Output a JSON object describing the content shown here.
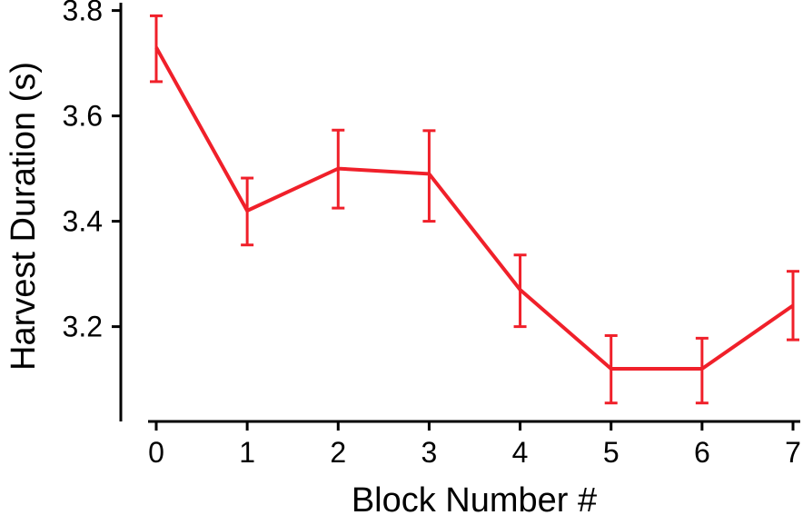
{
  "chart_data": {
    "type": "line",
    "title": "",
    "xlabel": "Block Number #",
    "ylabel": "Harvest Duration (s)",
    "x": [
      0,
      1,
      2,
      3,
      4,
      5,
      6,
      7
    ],
    "x_tick_labels": [
      "0",
      "1",
      "2",
      "3",
      "4",
      "5",
      "6",
      "7"
    ],
    "y_tick_values": [
      3.2,
      3.4,
      3.6,
      3.8
    ],
    "y_tick_labels": [
      "3.2",
      "3.4",
      "3.6",
      "3.8"
    ],
    "xlim": [
      0,
      7
    ],
    "ylim": [
      3.02,
      3.82
    ],
    "grid": false,
    "legend": "none",
    "series": [
      {
        "color": "#f0202a",
        "values": [
          3.73,
          3.42,
          3.5,
          3.49,
          3.27,
          3.12,
          3.12,
          3.24
        ],
        "error_lower": [
          3.665,
          3.355,
          3.425,
          3.4,
          3.2,
          3.055,
          3.055,
          3.175
        ],
        "error_upper": [
          3.79,
          3.482,
          3.573,
          3.572,
          3.336,
          3.183,
          3.178,
          3.305
        ]
      }
    ]
  }
}
